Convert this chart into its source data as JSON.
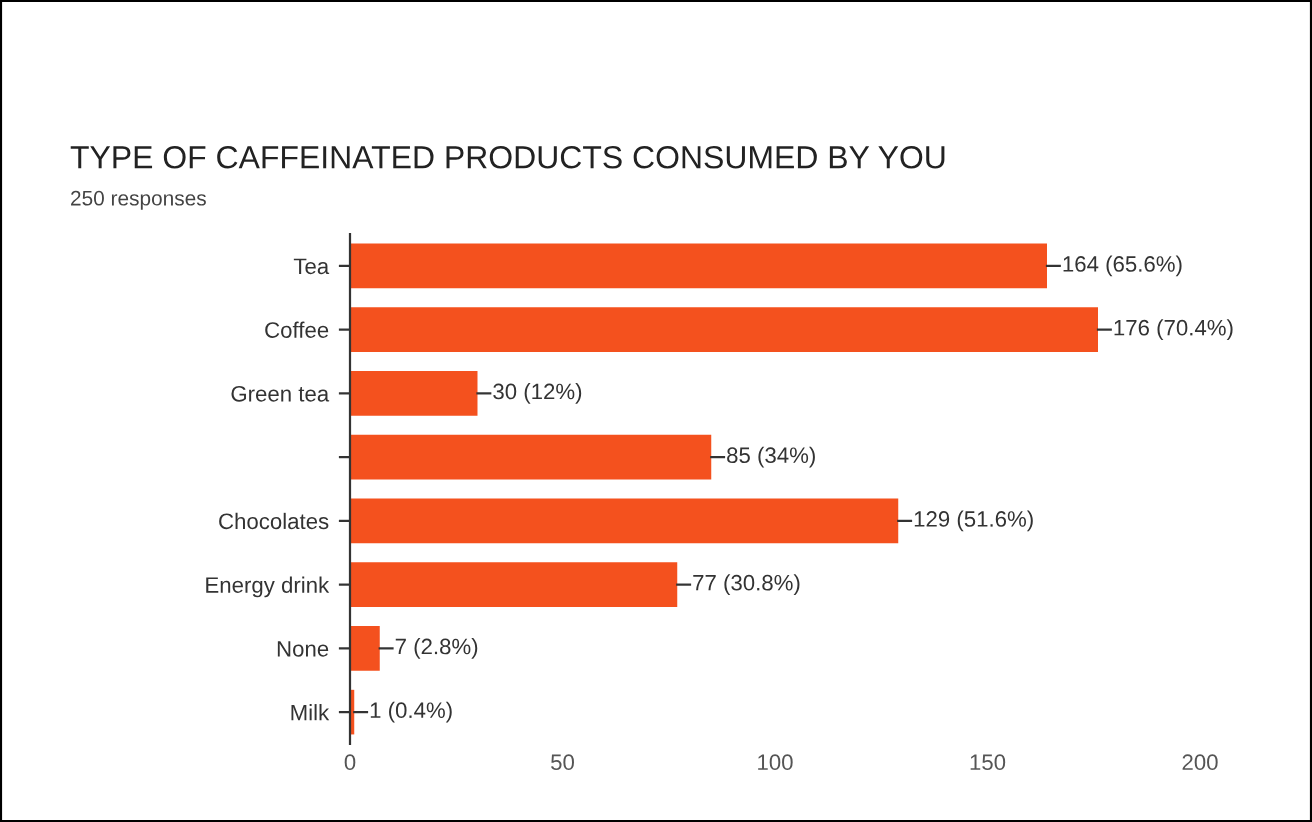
{
  "chart_data": {
    "type": "bar",
    "orientation": "horizontal",
    "title": "TYPE OF CAFFEINATED PRODUCTS CONSUMED BY YOU",
    "subtitle": "250 responses",
    "categories": [
      "Tea",
      "Coffee",
      "Green tea",
      null,
      "Chocolates",
      "Energy drink",
      "None",
      "Milk"
    ],
    "values": [
      164,
      176,
      30,
      85,
      129,
      77,
      7,
      1
    ],
    "value_labels": [
      "164 (65.6%)",
      "176 (70.4%)",
      "30 (12%)",
      "85 (34%)",
      "129 (51.6%)",
      "77 (30.8%)",
      "7 (2.8%)",
      "1 (0.4%)"
    ],
    "color": "#f4511e",
    "xlim": [
      0,
      200
    ],
    "xticks": [
      0,
      50,
      100,
      150,
      200
    ],
    "grid": false,
    "legend": false
  }
}
